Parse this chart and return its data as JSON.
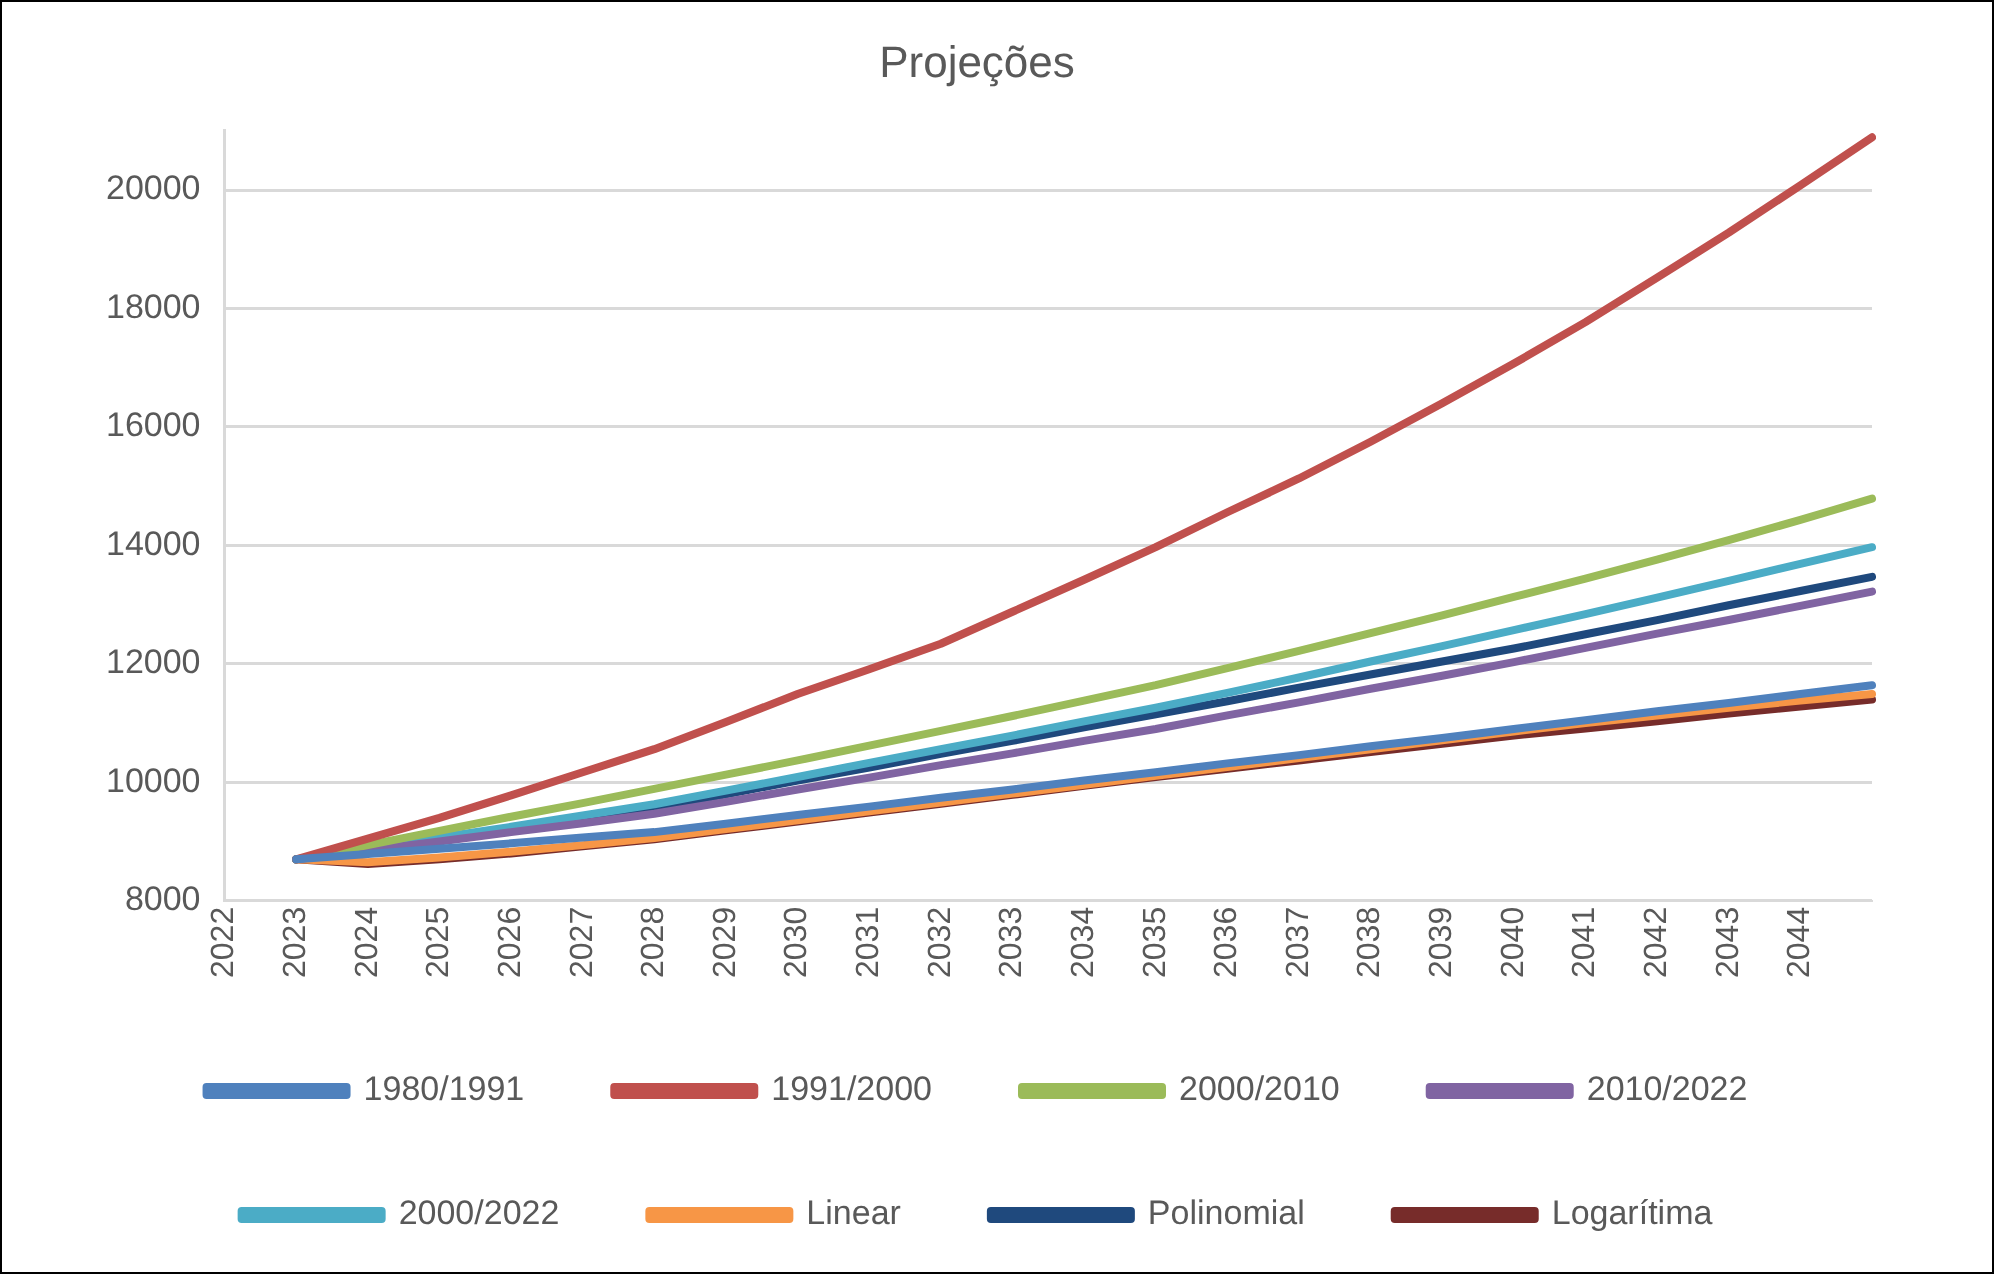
{
  "chart_data": {
    "type": "line",
    "title": "Projeções",
    "categories": [
      "2022",
      "2023",
      "2024",
      "2025",
      "2026",
      "2027",
      "2028",
      "2029",
      "2030",
      "2031",
      "2032",
      "2033",
      "2034",
      "2035",
      "2036",
      "2037",
      "2038",
      "2039",
      "2040",
      "2041",
      "2042",
      "2043",
      "2044",
      null
    ],
    "series": [
      {
        "name": "1980/1991",
        "color": "#4f81bd",
        "values": [
          null,
          8700,
          8790,
          8880,
          8970,
          9070,
          9160,
          9300,
          9450,
          9590,
          9740,
          9880,
          10030,
          10170,
          10320,
          10460,
          10610,
          10750,
          10900,
          11050,
          11200,
          11340,
          11490,
          11640
        ]
      },
      {
        "name": "1991/2000",
        "color": "#c0504d",
        "values": [
          null,
          8700,
          9050,
          9400,
          9780,
          10170,
          10560,
          11020,
          11490,
          11910,
          12340,
          12880,
          13420,
          13970,
          14560,
          15130,
          15750,
          16400,
          17070,
          17770,
          18520,
          19280,
          20080,
          20890
        ]
      },
      {
        "name": "2000/2010",
        "color": "#9bbb59",
        "values": [
          null,
          8700,
          8940,
          9180,
          9420,
          9650,
          9890,
          10130,
          10370,
          10620,
          10870,
          11120,
          11380,
          11640,
          11930,
          12220,
          12520,
          12820,
          13130,
          13440,
          13760,
          14090,
          14430,
          14790
        ]
      },
      {
        "name": "2010/2022",
        "color": "#8064a2",
        "values": [
          null,
          8700,
          8850,
          9000,
          9160,
          9310,
          9470,
          9670,
          9880,
          10080,
          10290,
          10490,
          10700,
          10900,
          11130,
          11350,
          11580,
          11800,
          12030,
          12270,
          12510,
          12740,
          12980,
          13220
        ]
      },
      {
        "name": "2000/2022",
        "color": "#4bacc6",
        "values": [
          null,
          8700,
          8880,
          9070,
          9250,
          9440,
          9630,
          9860,
          10090,
          10330,
          10560,
          10790,
          11030,
          11260,
          11510,
          11770,
          12040,
          12300,
          12570,
          12840,
          13120,
          13400,
          13690,
          13970
        ]
      },
      {
        "name": "Linear",
        "color": "#f79646",
        "values": [
          null,
          8700,
          8650,
          8730,
          8830,
          8940,
          9060,
          9210,
          9360,
          9510,
          9660,
          9810,
          9960,
          10110,
          10260,
          10410,
          10560,
          10710,
          10860,
          11000,
          11130,
          11260,
          11380,
          11490
        ]
      },
      {
        "name": "Polinomial",
        "color": "#1f497d",
        "values": [
          null,
          8700,
          8870,
          9050,
          9220,
          9400,
          9580,
          9800,
          10030,
          10250,
          10480,
          10700,
          10930,
          11150,
          11370,
          11600,
          11820,
          12040,
          12260,
          12500,
          12740,
          12990,
          13230,
          13470
        ]
      },
      {
        "name": "Logarítima",
        "color": "#772c2a",
        "values": [
          null,
          8700,
          8620,
          8700,
          8800,
          8920,
          9040,
          9190,
          9340,
          9490,
          9640,
          9790,
          9940,
          10090,
          10230,
          10370,
          10510,
          10650,
          10790,
          10910,
          11030,
          11160,
          11280,
          11400
        ]
      }
    ],
    "ylim": [
      8000,
      21000
    ],
    "yticks": [
      8000,
      10000,
      12000,
      14000,
      16000,
      18000,
      20000
    ],
    "grid": "y",
    "legend": "bottom",
    "marker": "none",
    "line_style": "solid"
  }
}
